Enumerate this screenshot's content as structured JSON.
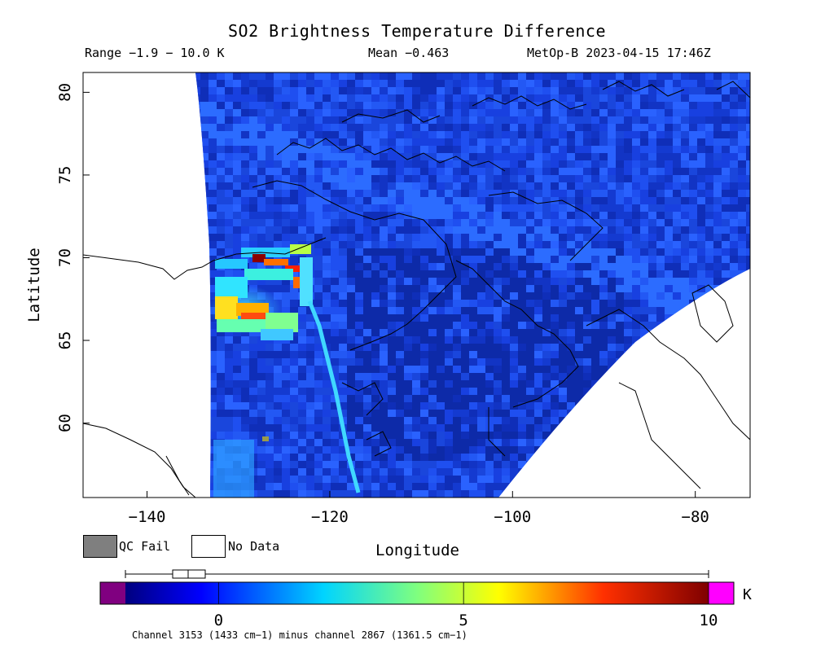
{
  "header": {
    "title": "SO2 Brightness Temperature Difference",
    "range": "Range −1.9 − 10.0 K",
    "mean": "Mean −0.463",
    "satellite": "MetOp-B 2023-04-15 17:46Z"
  },
  "map": {
    "xlabel": "Longitude",
    "ylabel": "Latitude",
    "x_ticks": [
      "−140",
      "−120",
      "−100",
      "−80"
    ],
    "y_ticks": [
      "80",
      "75",
      "70",
      "65",
      "60"
    ],
    "lon_range": [
      -147,
      -74
    ],
    "lat_range": [
      55.5,
      81.2
    ],
    "background_color": "#1a3fe0",
    "swath_edge": "curved",
    "features": [
      {
        "name": "SO2 plume core",
        "lon_range": [
          -131,
          -117
        ],
        "lat_range": [
          64.5,
          70.8
        ],
        "value_K_max": 9.5
      },
      {
        "name": "thin plume trail",
        "lon_range": [
          -118,
          -112
        ],
        "lat_range": [
          56,
          66
        ],
        "value_K_max": 3
      }
    ]
  },
  "legend": {
    "qc_fail": "QC Fail",
    "no_data": "No Data",
    "qc_fail_color": "#7f7f7f",
    "no_data_color": "#ffffff"
  },
  "colorbar": {
    "unit": "K",
    "min": -1.9,
    "max": 10.0,
    "ticks": [
      "0",
      "5",
      "10"
    ],
    "underflow_color": "#800080",
    "overflow_color": "#ff00ff",
    "caption": "Channel 3153 (1433 cm−1) minus channel 2867 (1361.5 cm−1)"
  },
  "chart_data": {
    "type": "heatmap",
    "title": "SO2 Brightness Temperature Difference",
    "xlabel": "Longitude",
    "ylabel": "Latitude",
    "xlim": [
      -147,
      -74
    ],
    "ylim": [
      55.5,
      81.2
    ],
    "x_ticks": [
      -140,
      -120,
      -100,
      -80
    ],
    "y_ticks": [
      80,
      75,
      70,
      65,
      60
    ],
    "value_range_K": [
      -1.9,
      10.0
    ],
    "mean_K": -0.463,
    "colorbar_ticks": [
      0,
      5,
      10
    ]
  }
}
